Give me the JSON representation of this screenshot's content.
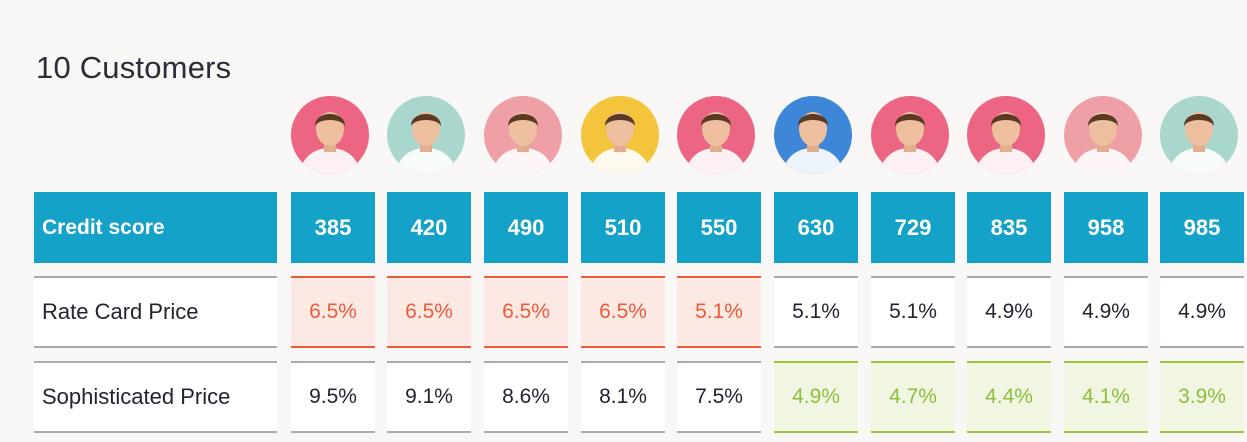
{
  "title": "10 Customers",
  "colors": {
    "header_row": "#14a2c8",
    "rate_highlight_bg": "#fde9e3",
    "rate_highlight_text": "#ee5a3c",
    "soph_highlight_bg": "#f1f6e2",
    "soph_highlight_text": "#8dbf3a"
  },
  "avatars": [
    {
      "name": "customer-1-avatar",
      "bg": "#ec6582"
    },
    {
      "name": "customer-2-avatar",
      "bg": "#a9d6cd"
    },
    {
      "name": "customer-3-avatar",
      "bg": "#eea0a6"
    },
    {
      "name": "customer-4-avatar",
      "bg": "#f4c43c"
    },
    {
      "name": "customer-5-avatar",
      "bg": "#ec6582"
    },
    {
      "name": "customer-6-avatar",
      "bg": "#3d86d8"
    },
    {
      "name": "customer-7-avatar",
      "bg": "#ec6582"
    },
    {
      "name": "customer-8-avatar",
      "bg": "#ec6582"
    },
    {
      "name": "customer-9-avatar",
      "bg": "#eea0a6"
    },
    {
      "name": "customer-10-avatar",
      "bg": "#a9d6cd"
    }
  ],
  "rows": {
    "credit_score": {
      "label": "Credit score",
      "values": [
        "385",
        "420",
        "490",
        "510",
        "550",
        "630",
        "729",
        "835",
        "958",
        "985"
      ]
    },
    "rate_card_price": {
      "label": "Rate Card Price",
      "values": [
        "6.5%",
        "6.5%",
        "6.5%",
        "6.5%",
        "5.1%",
        "5.1%",
        "5.1%",
        "4.9%",
        "4.9%",
        "4.9%"
      ],
      "highlighted_count": 5
    },
    "sophisticated_price": {
      "label": "Sophisticated Price",
      "values": [
        "9.5%",
        "9.1%",
        "8.6%",
        "8.1%",
        "7.5%",
        "4.9%",
        "4.7%",
        "4.4%",
        "4.1%",
        "3.9%"
      ],
      "highlighted_from": 5
    }
  }
}
